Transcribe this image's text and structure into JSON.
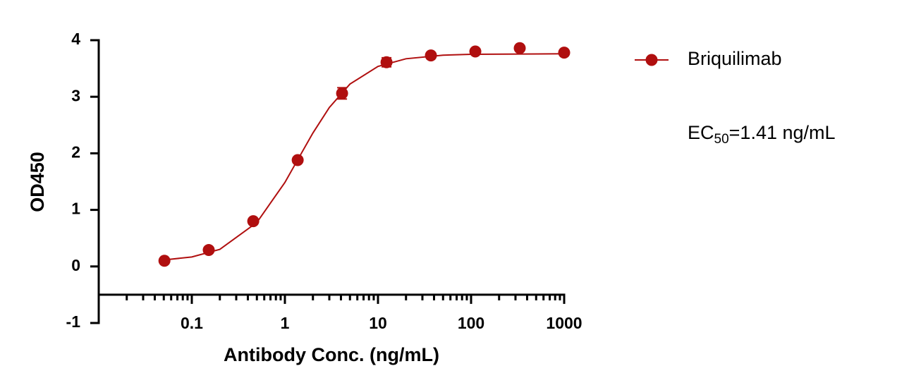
{
  "chart_data": {
    "type": "scatter",
    "x_label": "Antibody Conc. (ng/mL)",
    "y_label": "OD450",
    "xscale": "log",
    "xlim": [
      0.01,
      1000
    ],
    "xticks": [
      0.1,
      1,
      10,
      100,
      1000
    ],
    "xminorticks": [
      0.02,
      0.03,
      0.04,
      0.05,
      0.06,
      0.07,
      0.08,
      0.09,
      0.2,
      0.3,
      0.4,
      0.5,
      0.6,
      0.7,
      0.8,
      0.9,
      2,
      3,
      4,
      5,
      6,
      7,
      8,
      9,
      20,
      30,
      40,
      50,
      60,
      70,
      80,
      90,
      200,
      300,
      400,
      500,
      600,
      700,
      800,
      900
    ],
    "xaxis_crossing": -0.5,
    "ylim": [
      -1,
      4
    ],
    "yticks": [
      -1,
      0,
      1,
      2,
      3,
      4
    ],
    "grid": false,
    "legend_position": "upper-right-outside",
    "series": [
      {
        "name": "Briquilimab",
        "color": "#b00f0f",
        "x": [
          0.0508,
          0.152,
          0.457,
          1.372,
          4.115,
          12.35,
          37.04,
          111.1,
          333.3,
          1000
        ],
        "values": [
          0.1,
          0.29,
          0.8,
          1.88,
          3.06,
          3.61,
          3.73,
          3.8,
          3.86,
          3.78
        ],
        "errors": [
          0.02,
          0.02,
          0.02,
          0.03,
          0.1,
          0.08,
          0.03,
          0.03,
          0.02,
          0.02
        ],
        "fit_x": [
          0.05,
          0.1,
          0.2,
          0.5,
          1,
          1.41,
          2,
          3,
          5,
          10,
          20,
          50,
          100,
          1000
        ],
        "fit_y": [
          0.114,
          0.168,
          0.302,
          0.778,
          1.485,
          1.92,
          2.36,
          2.81,
          3.225,
          3.537,
          3.672,
          3.735,
          3.75,
          3.76
        ]
      }
    ],
    "annotation": {
      "text": "EC",
      "subscript": "50",
      "suffix": "=1.41 ng/mL"
    }
  }
}
